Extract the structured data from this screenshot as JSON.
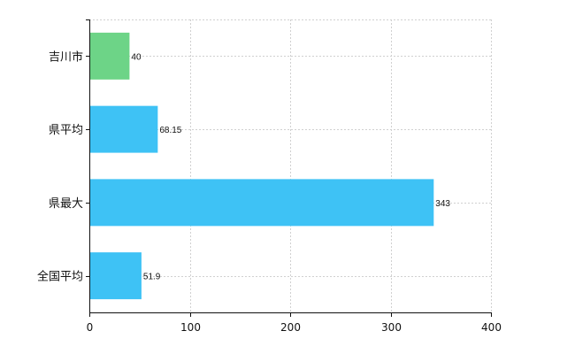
{
  "chart_data": {
    "type": "bar",
    "orientation": "horizontal",
    "categories": [
      "吉川市",
      "県平均",
      "県最大",
      "全国平均"
    ],
    "values": [
      40,
      68.15,
      343,
      51.9
    ],
    "value_labels": [
      "40",
      "68.15",
      "343",
      "51.9"
    ],
    "bar_colors": [
      "#6dd487",
      "#3ec2f5",
      "#3ec2f5",
      "#3ec2f5"
    ],
    "xlim": [
      0,
      400
    ],
    "xticks": [
      0,
      100,
      200,
      300,
      400
    ],
    "xtick_labels": [
      "0",
      "100",
      "200",
      "300",
      "400"
    ],
    "grid": true,
    "grid_style": "dashed",
    "title": "",
    "xlabel": "",
    "ylabel": ""
  }
}
